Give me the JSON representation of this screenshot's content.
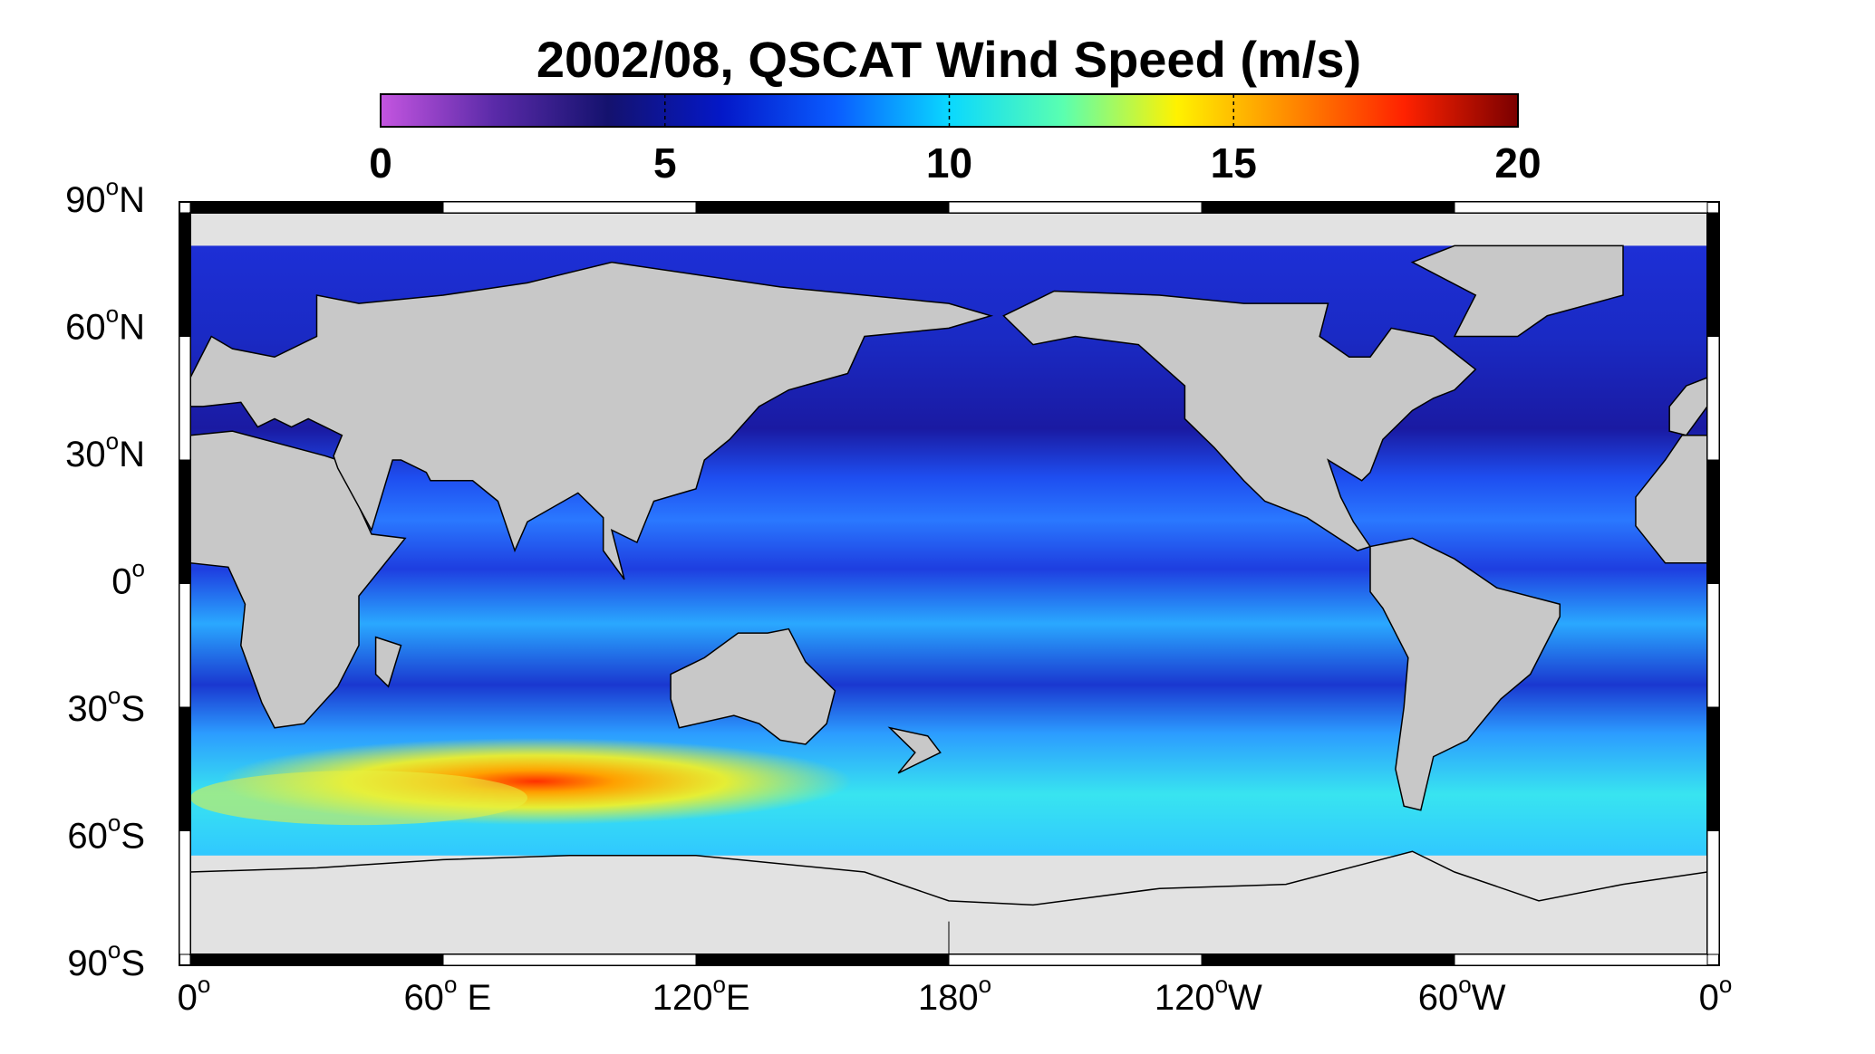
{
  "map": {
    "title": "2002/08,  QSCAT Wind Speed (m/s)",
    "colorbar": {
      "lim": [
        0,
        20
      ],
      "ticks": [
        0,
        5,
        10,
        15,
        20
      ],
      "colormap": [
        "#c455e0",
        "#5a2aa8",
        "#14126e",
        "#0418c8",
        "#0a5cff",
        "#0ad8ff",
        "#5affb0",
        "#fff200",
        "#ff8a00",
        "#ff2200",
        "#7a0000"
      ]
    },
    "degree_mark": "o",
    "lat_labels": [
      {
        "num": "90",
        "hemi": "N"
      },
      {
        "num": "60",
        "hemi": "N"
      },
      {
        "num": "30",
        "hemi": "N"
      },
      {
        "num": "0"
      },
      {
        "num": "30",
        "hemi": "S"
      },
      {
        "num": "60",
        "hemi": "S"
      },
      {
        "num": "90",
        "hemi": "S"
      }
    ],
    "lon_labels": [
      {
        "num": "0"
      },
      {
        "num": "60",
        "hemi": " E"
      },
      {
        "num": "120",
        "hemi": "E"
      },
      {
        "num": "180"
      },
      {
        "num": "120",
        "hemi": "W"
      },
      {
        "num": "60",
        "hemi": "W"
      },
      {
        "num": "0"
      }
    ]
  }
}
